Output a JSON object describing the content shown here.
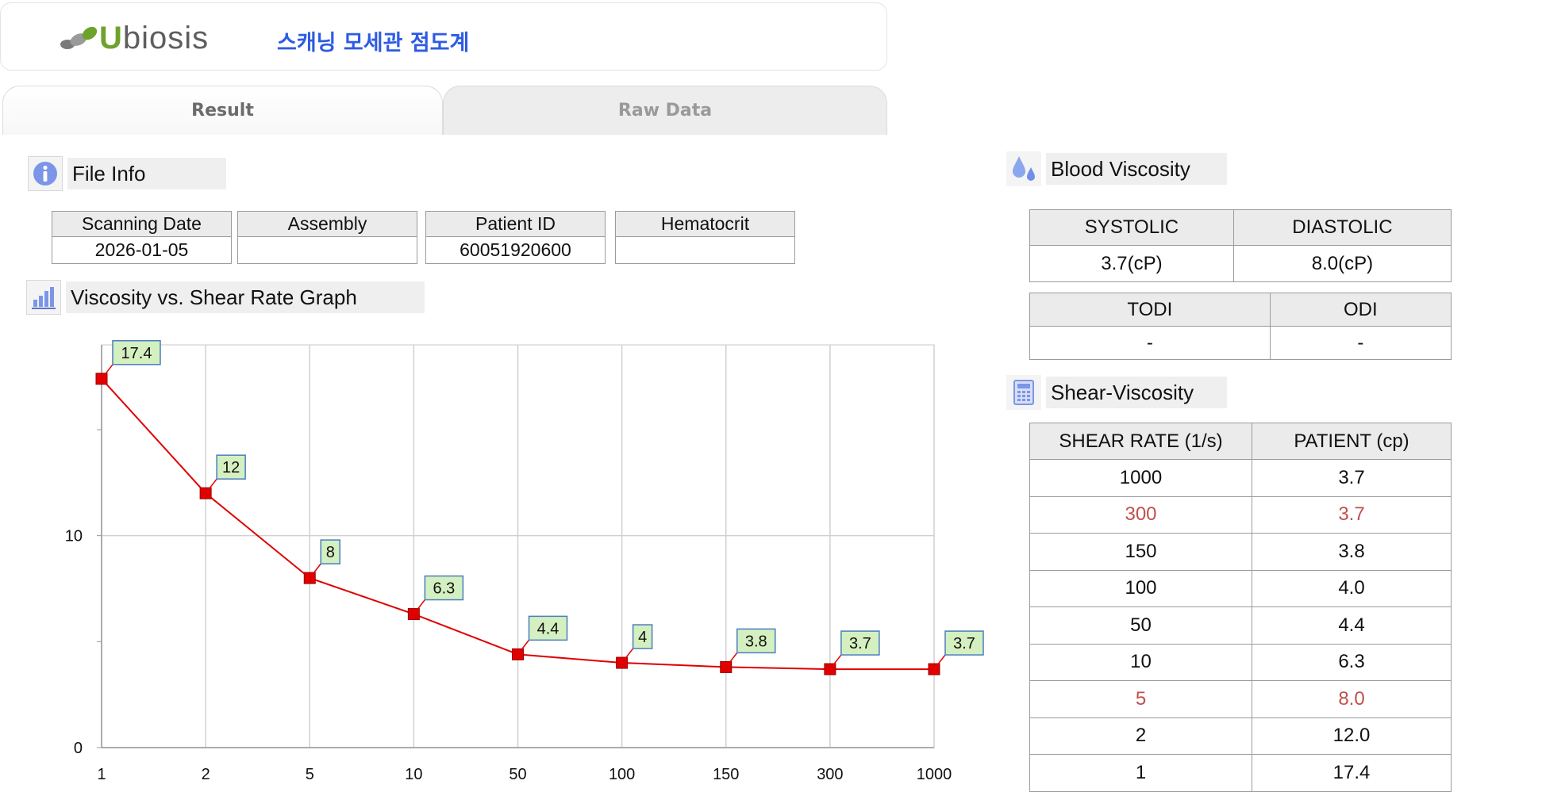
{
  "header": {
    "logo_text": "Ubiosis",
    "app_title": "스캐닝 모세관 점도계"
  },
  "tabs": [
    {
      "label": "Result",
      "active": true
    },
    {
      "label": "Raw Data",
      "active": false
    }
  ],
  "file_info": {
    "title": "File Info",
    "columns": [
      "Scanning Date",
      "Assembly",
      "Patient ID",
      "Hematocrit"
    ],
    "values": [
      "2026-01-05",
      "",
      "60051920600",
      ""
    ]
  },
  "graph_section": {
    "title": "Viscosity vs. Shear Rate Graph"
  },
  "blood_viscosity": {
    "title": "Blood Viscosity",
    "headers": [
      "SYSTOLIC",
      "DIASTOLIC"
    ],
    "values": [
      "3.7(cP)",
      "8.0(cP)"
    ],
    "headers2": [
      "TODI",
      "ODI"
    ],
    "values2": [
      "-",
      "-"
    ]
  },
  "shear_viscosity": {
    "title": "Shear-Viscosity",
    "headers": [
      "SHEAR RATE (1/s)",
      "PATIENT (cp)"
    ],
    "rows": [
      {
        "rate": "1000",
        "patient": "3.7",
        "highlight": false
      },
      {
        "rate": "300",
        "patient": "3.7",
        "highlight": true
      },
      {
        "rate": "150",
        "patient": "3.8",
        "highlight": false
      },
      {
        "rate": "100",
        "patient": "4.0",
        "highlight": false
      },
      {
        "rate": "50",
        "patient": "4.4",
        "highlight": false
      },
      {
        "rate": "10",
        "patient": "6.3",
        "highlight": false
      },
      {
        "rate": "5",
        "patient": "8.0",
        "highlight": true
      },
      {
        "rate": "2",
        "patient": "12.0",
        "highlight": false
      },
      {
        "rate": "1",
        "patient": "17.4",
        "highlight": false
      }
    ],
    "highlight_color": "#c0504d"
  },
  "chart_data": {
    "type": "line",
    "categories": [
      "1",
      "2",
      "5",
      "10",
      "50",
      "100",
      "150",
      "300",
      "1000"
    ],
    "series": [
      {
        "values": [
          17.4,
          12,
          8,
          6.3,
          4.4,
          4,
          3.8,
          3.7,
          3.7
        ],
        "labels": [
          "17.4",
          "12",
          "8",
          "6.3",
          "4.4",
          "4",
          "3.8",
          "3.7",
          "3.7"
        ],
        "color": "#e00000"
      }
    ],
    "y_ticks": [
      "0",
      "10"
    ],
    "ylim": [
      0,
      19
    ],
    "grid": true,
    "label_bg": "#d4f0c0",
    "label_border": "#4a7ec0"
  }
}
